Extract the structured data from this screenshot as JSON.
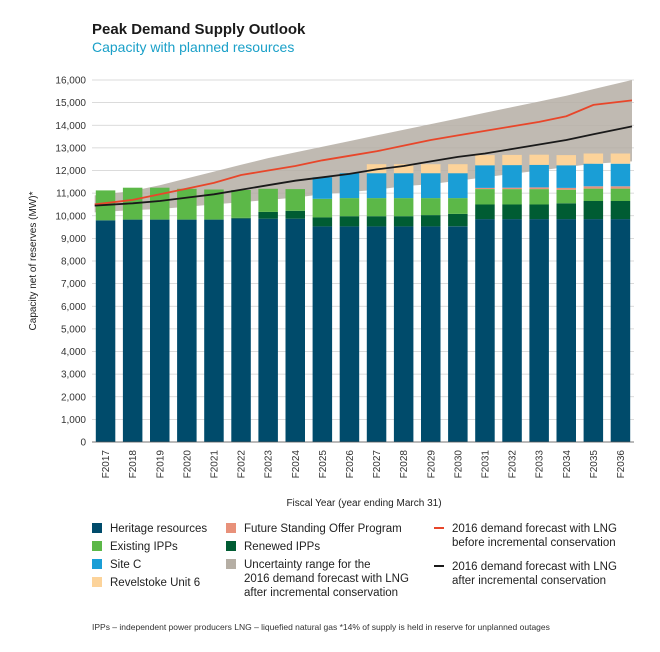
{
  "chart_data": {
    "type": "bar",
    "title": "Peak Demand Supply Outlook",
    "subtitle": "Capacity with planned resources",
    "xlabel": "Fiscal Year (year ending March 31)",
    "ylabel": "Capacity net of reserves (MW)*",
    "ylim": [
      0,
      16000
    ],
    "yticks": [
      0,
      1000,
      2000,
      3000,
      4000,
      5000,
      6000,
      7000,
      8000,
      9000,
      10000,
      11000,
      12000,
      13000,
      14000,
      15000,
      16000
    ],
    "ytick_labels": [
      "0",
      "1,000",
      "2,000",
      "3,000",
      "4,000",
      "5,000",
      "6,000",
      "7,000",
      "8,000",
      "9,000",
      "10,000",
      "11,000",
      "12,000",
      "13,000",
      "14,000",
      "15,000",
      "16,000"
    ],
    "grid": true,
    "categories": [
      "F2017",
      "F2018",
      "F2019",
      "F2020",
      "F2021",
      "F2022",
      "F2023",
      "F2024",
      "F2025",
      "F2026",
      "F2027",
      "F2028",
      "F2029",
      "F2030",
      "F2031",
      "F2032",
      "F2033",
      "F2034",
      "F2035",
      "F2036"
    ],
    "series": [
      {
        "name": "Heritage resources",
        "color": "#004b6b",
        "values": [
          9800,
          9830,
          9830,
          9830,
          9830,
          9870,
          9870,
          9870,
          9530,
          9530,
          9530,
          9530,
          9530,
          9530,
          9850,
          9850,
          9850,
          9850,
          9850,
          9850
        ]
      },
      {
        "name": "Renewed IPPs",
        "color": "#005c33",
        "values": [
          0,
          0,
          0,
          0,
          0,
          40,
          300,
          350,
          400,
          450,
          450,
          450,
          500,
          550,
          650,
          650,
          650,
          700,
          800,
          800
        ]
      },
      {
        "name": "Existing IPPs",
        "color": "#5cb848",
        "values": [
          1320,
          1410,
          1410,
          1360,
          1330,
          1230,
          1020,
          960,
          820,
          800,
          800,
          800,
          750,
          700,
          680,
          680,
          680,
          600,
          550,
          550
        ]
      },
      {
        "name": "Future Standing Offer Program",
        "color": "#e8917a",
        "values": [
          0,
          0,
          0,
          0,
          0,
          0,
          0,
          0,
          0,
          0,
          0,
          0,
          0,
          0,
          50,
          60,
          70,
          80,
          100,
          100
        ]
      },
      {
        "name": "Site C",
        "color": "#1a9ed6",
        "values": [
          0,
          0,
          0,
          0,
          0,
          0,
          0,
          0,
          950,
          1100,
          1100,
          1100,
          1100,
          1100,
          1000,
          1000,
          1000,
          1000,
          1000,
          1000
        ]
      },
      {
        "name": "Revelstoke Unit 6",
        "color": "#fcd39a",
        "values": [
          0,
          0,
          0,
          0,
          0,
          0,
          0,
          0,
          0,
          0,
          400,
          400,
          400,
          400,
          450,
          450,
          450,
          450,
          450,
          450
        ]
      }
    ],
    "lines": [
      {
        "name": "2016 demand forecast with LNG before incremental conservation",
        "color": "#e8462a",
        "values": [
          10500,
          10700,
          10950,
          11200,
          11450,
          11800,
          12000,
          12200,
          12450,
          12650,
          12850,
          13100,
          13350,
          13550,
          13750,
          13950,
          14150,
          14400,
          14900,
          15100
        ]
      },
      {
        "name": "2016 demand forecast with LNG after incremental conservation",
        "color": "#1a1a1a",
        "values": [
          10450,
          10550,
          10650,
          10800,
          10950,
          11150,
          11350,
          11550,
          11700,
          11850,
          12050,
          12200,
          12400,
          12600,
          12750,
          12950,
          13150,
          13350,
          13600,
          13950
        ]
      }
    ],
    "band": {
      "name": "Uncertainty range for the 2016 demand forecast with LNG after incremental conservation",
      "color": "#b5aea4",
      "lower": [
        10150,
        10250,
        10300,
        10400,
        10500,
        10600,
        10700,
        10800,
        10950,
        11050,
        11150,
        11300,
        11400,
        11550,
        11700,
        11850,
        12000,
        12150,
        12300,
        12400
      ],
      "upper": [
        10900,
        11100,
        11350,
        11650,
        11950,
        12250,
        12550,
        12800,
        13050,
        13300,
        13550,
        13800,
        14050,
        14300,
        14550,
        14800,
        15050,
        15300,
        15600,
        16000
      ]
    },
    "legend": {
      "placement": "bottom",
      "items": [
        {
          "label": "Heritage resources",
          "kind": "box",
          "color": "#004b6b"
        },
        {
          "label": "Existing IPPs",
          "kind": "box",
          "color": "#5cb848"
        },
        {
          "label": "Site C",
          "kind": "box",
          "color": "#1a9ed6"
        },
        {
          "label": "Revelstoke Unit 6",
          "kind": "box",
          "color": "#fcd39a"
        },
        {
          "label": "Future Standing Offer Program",
          "kind": "box",
          "color": "#e8917a"
        },
        {
          "label": "Renewed IPPs",
          "kind": "box",
          "color": "#005c33"
        },
        {
          "label": "Uncertainty range for the\n2016 demand forecast with LNG\nafter incremental conservation",
          "kind": "box",
          "color": "#b5aea4"
        },
        {
          "label": "2016 demand forecast with LNG\nbefore incremental conservation",
          "kind": "line",
          "color": "#e8462a"
        },
        {
          "label": "2016 demand forecast with LNG\nafter incremental conservation",
          "kind": "line",
          "color": "#1a1a1a"
        }
      ]
    },
    "footnote": "IPPs – independent power producers    LNG – liquefied natural gas    *14% of supply is held in reserve for unplanned outages"
  }
}
